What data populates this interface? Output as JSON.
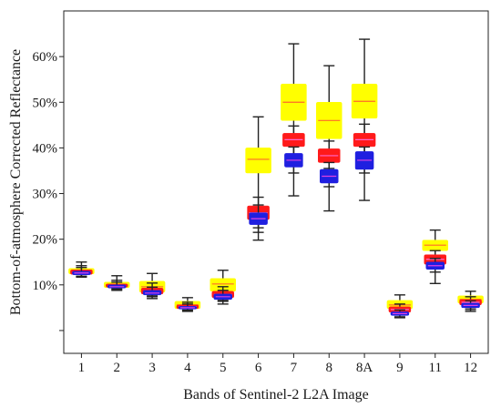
{
  "chart_data": {
    "type": "box",
    "xlabel": "Bands of Sentinel-2 L2A Image",
    "ylabel": "Bottom-of-atmosphere Corrected Reflectance",
    "categories": [
      "1",
      "2",
      "3",
      "4",
      "5",
      "6",
      "7",
      "8",
      "8A",
      "9",
      "11",
      "12"
    ],
    "ylim": [
      -5,
      70
    ],
    "yticks": [
      0,
      10,
      20,
      30,
      40,
      50,
      60
    ],
    "ytick_labels": [
      "",
      "10%",
      "20%",
      "30%",
      "40%",
      "50%",
      "60%"
    ],
    "grid": false,
    "legend": "none",
    "series": [
      {
        "color": "#1f1fe0",
        "median_color": "#e040e0",
        "boxes": [
          {
            "whisker_low": 11.8,
            "q1": 12.2,
            "median": 12.6,
            "q3": 13.0,
            "whisker_high": 13.8
          },
          {
            "whisker_low": 9.0,
            "q1": 9.3,
            "median": 9.6,
            "q3": 10.0,
            "whisker_high": 10.6
          },
          {
            "whisker_low": 7.4,
            "q1": 7.8,
            "median": 8.2,
            "q3": 8.8,
            "whisker_high": 9.5
          },
          {
            "whisker_low": 4.4,
            "q1": 4.7,
            "median": 5.0,
            "q3": 5.3,
            "whisker_high": 5.8
          },
          {
            "whisker_low": 6.4,
            "q1": 6.8,
            "median": 7.4,
            "q3": 8.0,
            "whisker_high": 8.8
          },
          {
            "whisker_low": 21.5,
            "q1": 23.2,
            "median": 24.5,
            "q3": 25.8,
            "whisker_high": 27.5
          },
          {
            "whisker_low": 34.5,
            "q1": 35.8,
            "median": 37.3,
            "q3": 38.8,
            "whisker_high": 40.2
          },
          {
            "whisker_low": 31.5,
            "q1": 32.3,
            "median": 33.8,
            "q3": 35.3,
            "whisker_high": 36.8
          },
          {
            "whisker_low": 34.5,
            "q1": 35.3,
            "median": 37.3,
            "q3": 39.2,
            "whisker_high": 40.2
          },
          {
            "whisker_low": 3.0,
            "q1": 3.3,
            "median": 3.7,
            "q3": 4.1,
            "whisker_high": 4.5
          },
          {
            "whisker_low": 12.8,
            "q1": 13.4,
            "median": 14.2,
            "q3": 15.0,
            "whisker_high": 15.8
          },
          {
            "whisker_low": 4.6,
            "q1": 5.0,
            "median": 5.5,
            "q3": 6.0,
            "whisker_high": 6.5
          }
        ]
      },
      {
        "color": "#ff1a1a",
        "median_color": "#ff66cc",
        "boxes": [
          {
            "whisker_low": 11.9,
            "q1": 12.3,
            "median": 12.8,
            "q3": 13.3,
            "whisker_high": 14.2
          },
          {
            "whisker_low": 9.2,
            "q1": 9.5,
            "median": 9.8,
            "q3": 10.2,
            "whisker_high": 11.0
          },
          {
            "whisker_low": 7.6,
            "q1": 8.0,
            "median": 8.6,
            "q3": 9.3,
            "whisker_high": 10.4
          },
          {
            "whisker_low": 4.5,
            "q1": 4.8,
            "median": 5.2,
            "q3": 5.6,
            "whisker_high": 6.2
          },
          {
            "whisker_low": 6.6,
            "q1": 7.2,
            "median": 7.9,
            "q3": 8.6,
            "whisker_high": 9.6
          },
          {
            "whisker_low": 22.5,
            "q1": 24.3,
            "median": 25.8,
            "q3": 27.3,
            "whisker_high": 29.2
          },
          {
            "whisker_low": 38.5,
            "q1": 40.3,
            "median": 41.8,
            "q3": 43.2,
            "whisker_high": 44.8
          },
          {
            "whisker_low": 35.5,
            "q1": 36.8,
            "median": 38.3,
            "q3": 39.8,
            "whisker_high": 41.5
          },
          {
            "whisker_low": 38.8,
            "q1": 40.3,
            "median": 41.8,
            "q3": 43.2,
            "whisker_high": 45.2
          },
          {
            "whisker_low": 3.4,
            "q1": 4.0,
            "median": 4.6,
            "q3": 5.2,
            "whisker_high": 5.8
          },
          {
            "whisker_low": 13.5,
            "q1": 14.5,
            "median": 15.6,
            "q3": 16.6,
            "whisker_high": 17.5
          },
          {
            "whisker_low": 5.0,
            "q1": 5.6,
            "median": 6.2,
            "q3": 6.8,
            "whisker_high": 7.4
          }
        ]
      },
      {
        "color": "#ffff00",
        "median_color": "#ff6a2a",
        "boxes": [
          {
            "whisker_low": 11.7,
            "q1": 12.4,
            "median": 13.0,
            "q3": 13.6,
            "whisker_high": 15.0
          },
          {
            "whisker_low": 8.8,
            "q1": 9.4,
            "median": 10.0,
            "q3": 10.6,
            "whisker_high": 12.0
          },
          {
            "whisker_low": 7.0,
            "q1": 8.4,
            "median": 9.6,
            "q3": 10.8,
            "whisker_high": 12.5
          },
          {
            "whisker_low": 4.2,
            "q1": 4.8,
            "median": 5.6,
            "q3": 6.4,
            "whisker_high": 7.2
          },
          {
            "whisker_low": 5.8,
            "q1": 8.6,
            "median": 10.2,
            "q3": 11.4,
            "whisker_high": 13.2
          },
          {
            "whisker_low": 19.8,
            "q1": 34.5,
            "median": 37.5,
            "q3": 40.0,
            "whisker_high": 46.8
          },
          {
            "whisker_low": 29.5,
            "q1": 46.0,
            "median": 50.0,
            "q3": 54.0,
            "whisker_high": 62.8
          },
          {
            "whisker_low": 26.2,
            "q1": 42.0,
            "median": 46.0,
            "q3": 50.0,
            "whisker_high": 58.0
          },
          {
            "whisker_low": 28.5,
            "q1": 46.5,
            "median": 50.2,
            "q3": 54.0,
            "whisker_high": 63.8
          },
          {
            "whisker_low": 2.8,
            "q1": 4.8,
            "median": 5.6,
            "q3": 6.6,
            "whisker_high": 7.8
          },
          {
            "whisker_low": 10.3,
            "q1": 17.5,
            "median": 18.7,
            "q3": 19.8,
            "whisker_high": 22.0
          },
          {
            "whisker_low": 4.2,
            "q1": 6.0,
            "median": 6.8,
            "q3": 7.6,
            "whisker_high": 8.6
          }
        ]
      }
    ]
  }
}
